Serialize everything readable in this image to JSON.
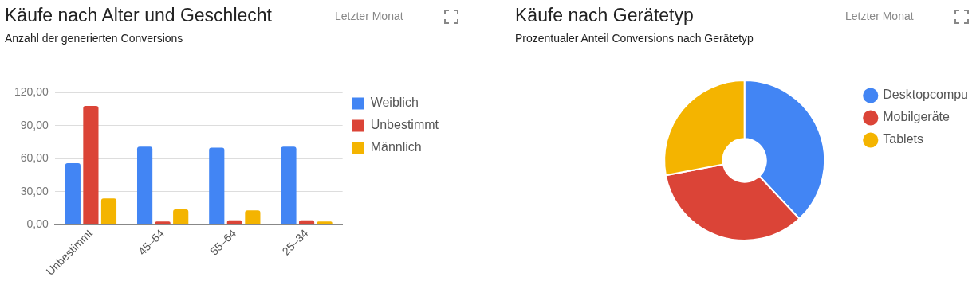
{
  "chart_data": [
    {
      "type": "bar",
      "title": "Käufe nach Alter und Geschlecht",
      "subtitle": "Anzahl der generierten Conversions",
      "annotations": [
        "Letzter Monat"
      ],
      "categories": [
        "Unbestimmt",
        "45–54",
        "55–64",
        "25–34"
      ],
      "series": [
        {
          "name": "Weiblich",
          "color": "#4285f4",
          "values": [
            56,
            71,
            70,
            71
          ]
        },
        {
          "name": "Unbestimmt",
          "color": "#db4437",
          "values": [
            108,
            3,
            4,
            4
          ]
        },
        {
          "name": "Männlich",
          "color": "#f4b400",
          "values": [
            24,
            14,
            13,
            3
          ]
        }
      ],
      "ylim": [
        0,
        120
      ],
      "yticks": [
        {
          "value": 0,
          "label": "0,00"
        },
        {
          "value": 30,
          "label": "30,00"
        },
        {
          "value": 60,
          "label": "60,00"
        },
        {
          "value": 90,
          "label": "90,00"
        },
        {
          "value": 120,
          "label": "120,00"
        }
      ],
      "grid": "y",
      "legend": "top right"
    },
    {
      "type": "donut",
      "title": "Käufe nach Gerätetyp",
      "subtitle": "Prozentualer Anteil Conversions nach Gerätetyp",
      "annotations": [
        "Letzter Monat"
      ],
      "categories": [
        "Desktopcompu",
        "Mobilgeräte",
        "Tablets"
      ],
      "values": [
        38,
        34,
        28
      ],
      "colors": [
        "#4285f4",
        "#db4437",
        "#f4b400"
      ],
      "legend": "top right"
    }
  ]
}
